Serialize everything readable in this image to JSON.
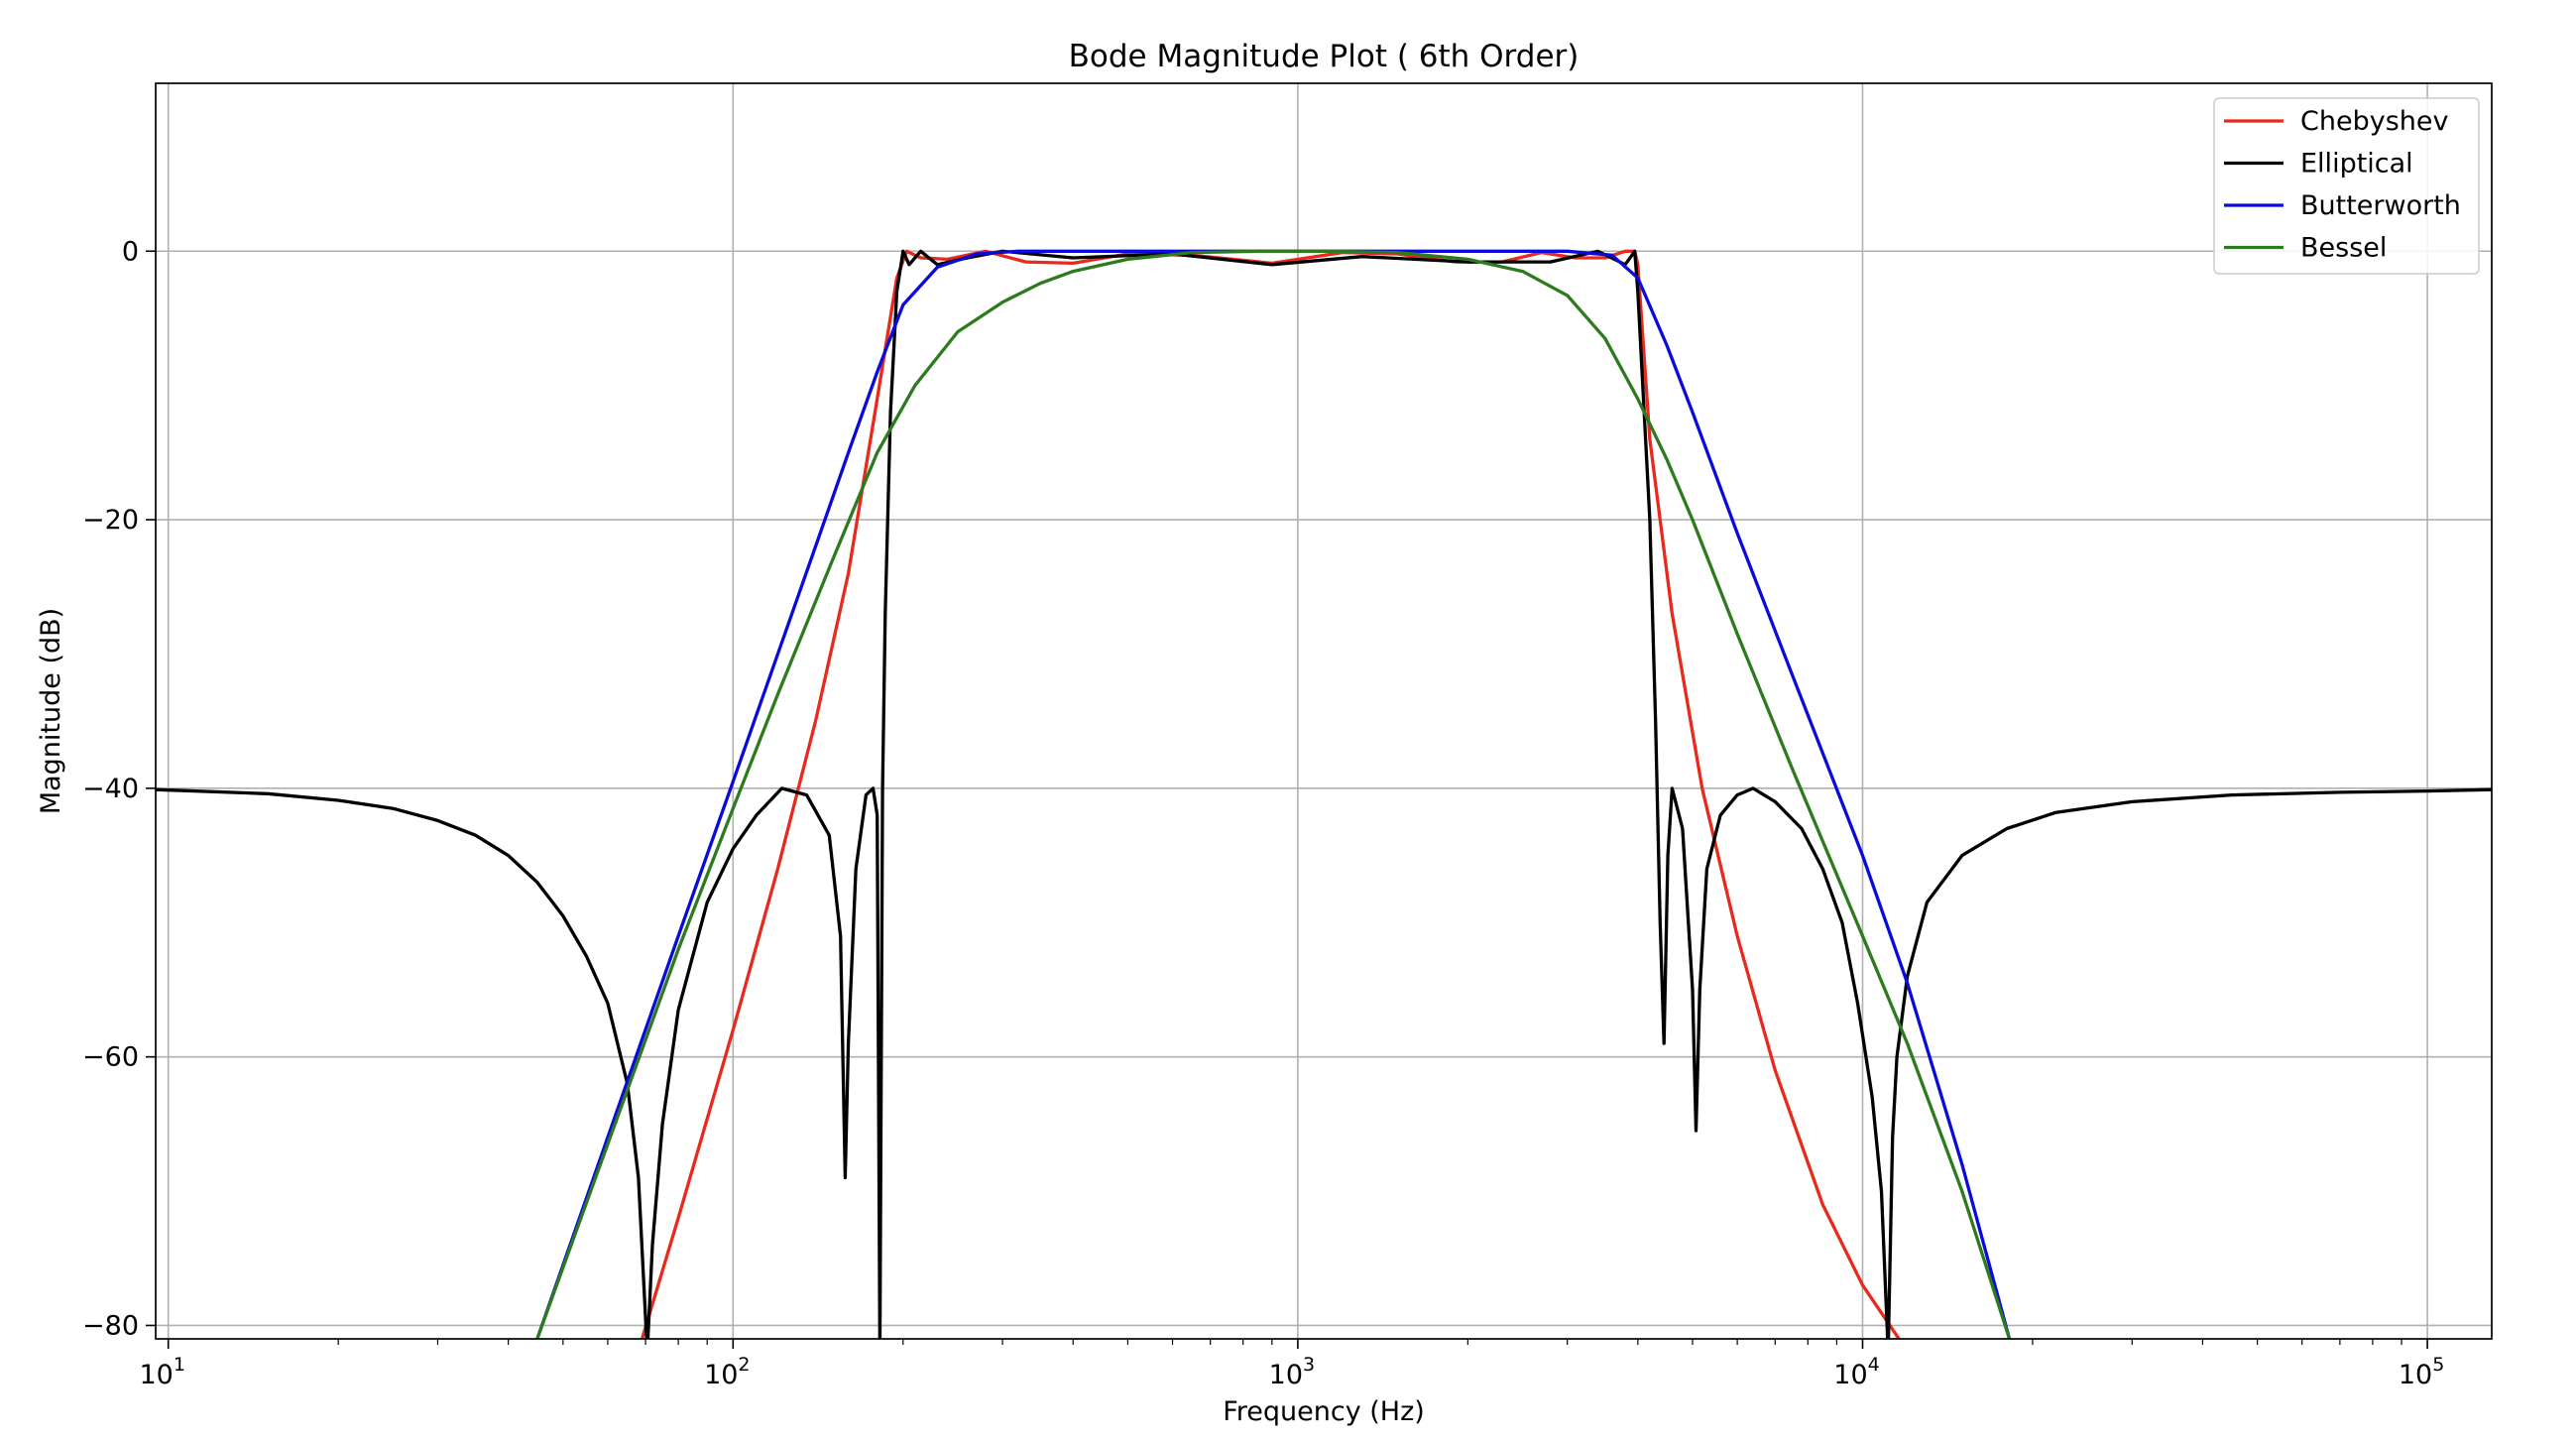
{
  "chart_data": {
    "type": "line",
    "title": "Bode Magnitude Plot ( 6th Order)",
    "xlabel": "Frequency (Hz)",
    "ylabel": "Magnitude (dB)",
    "x_scale": "log",
    "xlim": [
      9.5,
      130000
    ],
    "ylim": [
      -81,
      12.5
    ],
    "x_ticks": [
      {
        "value": 10,
        "base": "10",
        "exp": "1"
      },
      {
        "value": 100,
        "base": "10",
        "exp": "2"
      },
      {
        "value": 1000,
        "base": "10",
        "exp": "3"
      },
      {
        "value": 10000,
        "base": "10",
        "exp": "4"
      },
      {
        "value": 100000,
        "base": "10",
        "exp": "5"
      }
    ],
    "y_ticks": [
      {
        "value": 0,
        "label": "0"
      },
      {
        "value": -20,
        "label": "−20"
      },
      {
        "value": -40,
        "label": "−40"
      },
      {
        "value": -60,
        "label": "−60"
      },
      {
        "value": -80,
        "label": "−80"
      }
    ],
    "grid": true,
    "legend_position": "top-right",
    "series": [
      {
        "name": "Chebyshev",
        "color": "#e8291c",
        "x": [
          69,
          80,
          100,
          120,
          140,
          160,
          180,
          195,
          203,
          215,
          240,
          280,
          330,
          400,
          500,
          650,
          900,
          1200,
          1500,
          1900,
          2300,
          2700,
          3100,
          3500,
          3800,
          3950,
          4000,
          4200,
          4600,
          5200,
          6000,
          7000,
          8500,
          10000,
          11600
        ],
        "y": [
          -81,
          -72,
          -58,
          -46,
          -35,
          -24,
          -11,
          -2,
          0,
          -0.5,
          -0.6,
          0,
          -0.8,
          -0.9,
          -0.2,
          -0.3,
          -0.9,
          -0.1,
          -0.2,
          -0.8,
          -0.8,
          -0.1,
          -0.5,
          -0.5,
          0,
          0,
          -1,
          -14,
          -27,
          -40,
          -51,
          -61,
          -71,
          -77,
          -81
        ]
      },
      {
        "name": "Elliptical",
        "color": "#000000",
        "x": [
          9.5,
          15,
          20,
          25,
          30,
          35,
          40,
          45,
          50,
          55,
          60,
          65,
          68,
          70.5,
          72,
          75,
          80,
          90,
          100,
          110,
          122,
          135,
          148,
          155,
          158,
          160,
          165,
          172,
          177,
          180,
          182,
          184,
          186,
          190,
          195,
          200,
          205,
          215,
          230,
          260,
          300,
          400,
          600,
          900,
          1300,
          2000,
          2800,
          3400,
          3800,
          3950,
          4000,
          4200,
          4300,
          4380,
          4450,
          4520,
          4600,
          4800,
          5000,
          5070,
          5150,
          5300,
          5600,
          6000,
          6400,
          7000,
          7800,
          8500,
          9200,
          9800,
          10400,
          10800,
          11100,
          11200,
          11300,
          11500,
          12000,
          13000,
          15000,
          18000,
          22000,
          30000,
          45000,
          70000,
          100000,
          130000
        ],
        "y": [
          -40.1,
          -40.4,
          -40.9,
          -41.5,
          -42.4,
          -43.5,
          -45,
          -47,
          -49.5,
          -52.5,
          -56,
          -62,
          -69,
          -82,
          -74,
          -65,
          -56.5,
          -48.5,
          -44.5,
          -42,
          -40,
          -40.5,
          -43.5,
          -51,
          -69,
          -59,
          -46,
          -40.5,
          -40,
          -42,
          -82,
          -40,
          -27,
          -12,
          -3,
          0,
          -1,
          0,
          -1,
          -0.5,
          0,
          -0.5,
          -0.2,
          -1,
          -0.4,
          -0.8,
          -0.8,
          0,
          -1,
          0,
          -3,
          -20,
          -35,
          -50,
          -59,
          -45,
          -40,
          -43,
          -55,
          -65.5,
          -55,
          -46,
          -42,
          -40.5,
          -40,
          -41,
          -43,
          -46,
          -50,
          -56,
          -63,
          -70,
          -82,
          -74,
          -66,
          -60,
          -54,
          -48.5,
          -45,
          -43,
          -41.8,
          -41,
          -40.5,
          -40.3,
          -40.2,
          -40.1
        ]
      },
      {
        "name": "Butterworth",
        "color": "#0a0adc",
        "x": [
          45,
          60,
          80,
          100,
          120,
          140,
          160,
          180,
          200,
          230,
          270,
          320,
          400,
          600,
          1000,
          2000,
          3000,
          3600,
          4000,
          4500,
          5000,
          6000,
          7500,
          10000,
          12000,
          15000,
          18200
        ],
        "y": [
          -81,
          -66,
          -51,
          -39.5,
          -30,
          -22,
          -15,
          -9,
          -4,
          -1.2,
          -0.2,
          0,
          0,
          0,
          0,
          0,
          0,
          -0.3,
          -2,
          -7,
          -12,
          -21,
          -31.5,
          -45,
          -54.5,
          -68,
          -81
        ]
      },
      {
        "name": "Bessel",
        "color": "#2d7a1f",
        "x": [
          45,
          60,
          80,
          100,
          120,
          150,
          180,
          210,
          250,
          300,
          350,
          400,
          500,
          650,
          850,
          1100,
          1500,
          2000,
          2500,
          3000,
          3500,
          4000,
          4500,
          5000,
          6000,
          7500,
          10000,
          12000,
          15000,
          18200
        ],
        "y": [
          -81,
          -66.5,
          -52,
          -41.5,
          -33,
          -23,
          -15,
          -10,
          -6,
          -3.8,
          -2.4,
          -1.5,
          -0.6,
          -0.1,
          0,
          0,
          -0.1,
          -0.6,
          -1.5,
          -3.3,
          -6.5,
          -11,
          -15.5,
          -20,
          -28.5,
          -38.5,
          -51,
          -59,
          -70,
          -81
        ]
      }
    ]
  }
}
